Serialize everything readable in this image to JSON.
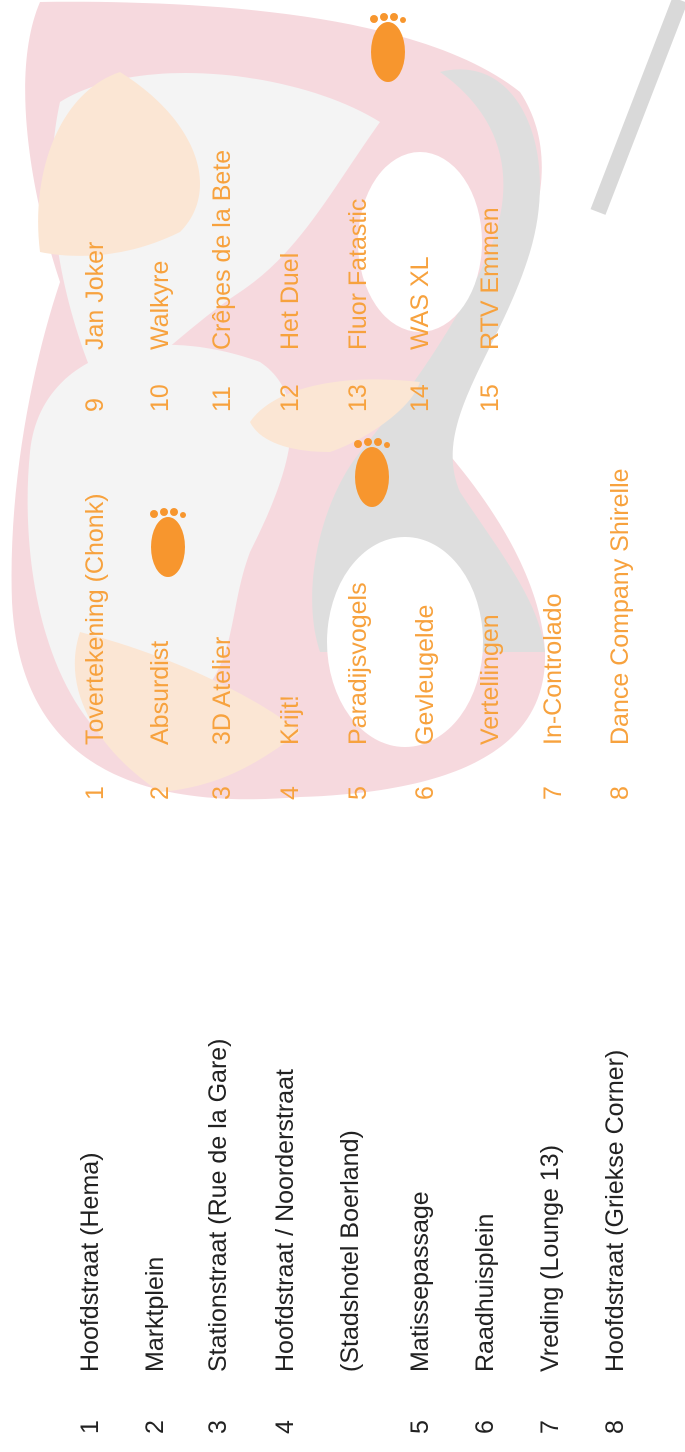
{
  "locations": [
    {
      "num": "1",
      "name": "Hoofdstraat (Hema)"
    },
    {
      "num": "2",
      "name": "Marktplein"
    },
    {
      "num": "3",
      "name": "Stationstraat (Rue de la Gare)"
    },
    {
      "num": "4",
      "name": "Hoofdstraat / Noorderstraat"
    },
    {
      "name": "(Stadshotel Boerland)"
    },
    {
      "num": "5",
      "name": "Matissepassage"
    },
    {
      "num": "6",
      "name": "Raadhuisplein"
    },
    {
      "num": "7",
      "name": "Vreding (Lounge 13)"
    },
    {
      "num": "8",
      "name": "Hoofdstraat (Griekse Corner)"
    }
  ],
  "acts_left": [
    {
      "num": "1",
      "name": "Tovertekening (Chonk)"
    },
    {
      "num": "2",
      "name": "Absurdist"
    },
    {
      "num": "3",
      "name": "3D Atelier"
    },
    {
      "num": "4",
      "name": "Krijt!"
    },
    {
      "num": "5",
      "name": "Paradijsvogels"
    },
    {
      "num": "6",
      "name": "Gevleugelde"
    },
    {
      "name": "Vertellingen"
    },
    {
      "num": "7",
      "name": "In-Controlado"
    },
    {
      "num": "8",
      "name": "Dance Company Shirelle"
    }
  ],
  "acts_right": [
    {
      "num": "9",
      "name": "Jan Joker"
    },
    {
      "num": "10",
      "name": "Walkyre"
    },
    {
      "num": "11",
      "name": "Crêpes de la Bete"
    },
    {
      "num": "12",
      "name": "Het Duel"
    },
    {
      "num": "13",
      "name": "Fluor Fatastic"
    },
    {
      "num": "14",
      "name": "WAS XL"
    },
    {
      "num": "15",
      "name": "RTV Emmen"
    }
  ]
}
